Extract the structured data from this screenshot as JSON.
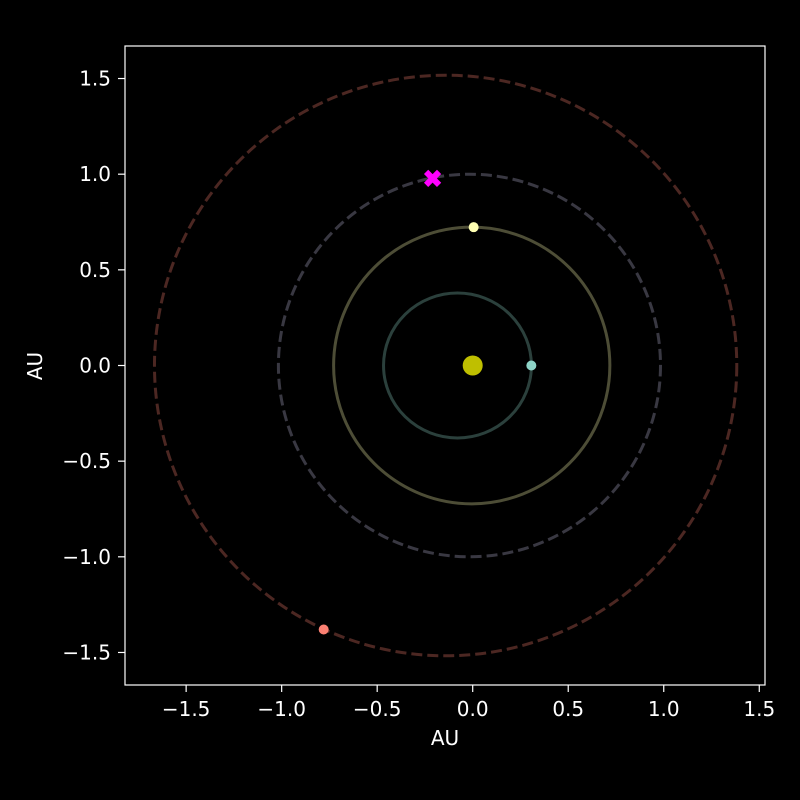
{
  "chart_data": {
    "type": "scatter",
    "title": "",
    "xlabel": "AU",
    "ylabel": "AU",
    "xlim": [
      -1.82,
      1.53
    ],
    "ylim": [
      -1.67,
      1.67
    ],
    "x_ticks": [
      {
        "value": -1.5,
        "label": "−1.5"
      },
      {
        "value": -1.0,
        "label": "−1.0"
      },
      {
        "value": -0.5,
        "label": "−0.5"
      },
      {
        "value": 0.0,
        "label": "0.0"
      },
      {
        "value": 0.5,
        "label": "0.5"
      },
      {
        "value": 1.0,
        "label": "1.0"
      },
      {
        "value": 1.5,
        "label": "1.5"
      }
    ],
    "y_ticks": [
      {
        "value": 1.5,
        "label": "1.5"
      },
      {
        "value": 1.0,
        "label": "1.0"
      },
      {
        "value": 0.5,
        "label": "0.5"
      },
      {
        "value": 0.0,
        "label": "0.0"
      },
      {
        "value": -0.5,
        "label": "−0.5"
      },
      {
        "value": -1.0,
        "label": "−1.0"
      },
      {
        "value": -1.5,
        "label": "−1.5"
      }
    ],
    "grid": false,
    "background": "#000000",
    "foreground": "#ffffff",
    "sun": {
      "x": 0.0,
      "y": 0.0,
      "color": "#bfbf00"
    },
    "orbits": [
      {
        "a": 0.387,
        "e": 0.206,
        "color": "#8dd3c7",
        "style": "solid",
        "alpha": 0.3
      },
      {
        "a": 0.723,
        "e": 0.007,
        "color": "#ffffb3",
        "style": "solid",
        "alpha": 0.3
      },
      {
        "a": 1.0,
        "e": 0.017,
        "color": "#bebada",
        "style": "dashed",
        "alpha": 0.3
      },
      {
        "a": 1.524,
        "e": 0.093,
        "color": "#fb8072",
        "style": "dashed",
        "alpha": 0.3
      }
    ],
    "planets": [
      {
        "x": 0.307,
        "y": 0.0,
        "color": "#8dd3c7"
      },
      {
        "x": 0.005,
        "y": 0.723,
        "color": "#ffffb3"
      },
      {
        "x": -0.78,
        "y": -1.38,
        "color": "#fb8072"
      }
    ],
    "marker": {
      "x": -0.21,
      "y": 0.978,
      "color": "#ff00ff",
      "symbol": "X"
    }
  }
}
